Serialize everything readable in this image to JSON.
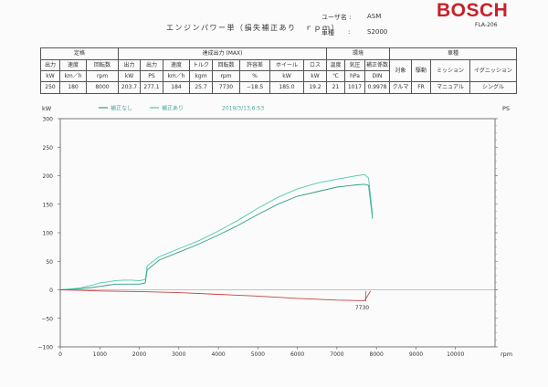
{
  "header": {
    "brand": "BOSCH",
    "model_code": "FLA-206",
    "title": "エンジンパワー単（損失補正あり　ｒｐｍ）",
    "user_label": "ユーザ名 :",
    "user_value": "ASM",
    "car_label": "車種",
    "car_sep": ":",
    "car_value": "S2000"
  },
  "table": {
    "groups": [
      "定格",
      "達成出力 (MAX)",
      "環境",
      "車種"
    ],
    "headers": [
      [
        "出力",
        "kW"
      ],
      [
        "速度",
        "km／h"
      ],
      [
        "回転数",
        "rpm"
      ],
      [
        "出力",
        "kW"
      ],
      [
        "出力",
        "PS"
      ],
      [
        "速度",
        "km／h"
      ],
      [
        "トルク",
        "kgm"
      ],
      [
        "回転数",
        "rpm"
      ],
      [
        "許容差",
        "%"
      ],
      [
        "ホイール",
        "kW"
      ],
      [
        "ロス",
        "kW"
      ],
      [
        "温度",
        "℃"
      ],
      [
        "気圧",
        "hPa"
      ],
      [
        "補正係数",
        "DIN"
      ],
      [
        "対象",
        ""
      ],
      [
        "駆動",
        ""
      ],
      [
        "ミッション",
        ""
      ],
      [
        "イグニッション",
        ""
      ]
    ],
    "values": [
      "250",
      "180",
      "8000",
      "203.7",
      "277.1",
      "184",
      "25.7",
      "7730",
      "−18.5",
      "185.0",
      "19.2",
      "21",
      "1017",
      "0.9978",
      "クルマ",
      "FR",
      "マニュアル",
      "シングル"
    ]
  },
  "chart_data": {
    "type": "line",
    "legend": [
      "補正なし",
      "補正あり"
    ],
    "date": "2019/3/13,6:53",
    "xlabel": "rpm",
    "ylabel_left": "kW",
    "ylabel_right": "PS",
    "xlim": [
      0,
      11000
    ],
    "ylim": [
      -100,
      300
    ],
    "xticks": [
      0,
      1000,
      2000,
      3000,
      4000,
      5000,
      6000,
      7000,
      8000,
      9000,
      10000
    ],
    "yticks": [
      -100,
      -50,
      0,
      50,
      100,
      150,
      200,
      250,
      300
    ],
    "annotation": "7730",
    "colors": {
      "corrected": "#4ec9b0",
      "uncorrected": "#2f9f84",
      "loss": "#c94040"
    },
    "series": [
      {
        "name": "補正なし",
        "x": [
          0,
          500,
          800,
          1000,
          1200,
          1400,
          1600,
          1800,
          2000,
          2150,
          2200,
          2500,
          3000,
          3500,
          4000,
          4500,
          5000,
          5500,
          6000,
          6500,
          7000,
          7500,
          7700,
          7800,
          7900
        ],
        "y": [
          0,
          2,
          4,
          6,
          8,
          10,
          10,
          10,
          10,
          12,
          35,
          52,
          66,
          80,
          96,
          113,
          132,
          150,
          164,
          172,
          180,
          184,
          185,
          183,
          125
        ]
      },
      {
        "name": "補正あり",
        "x": [
          0,
          500,
          800,
          1000,
          1200,
          1400,
          1600,
          1800,
          2000,
          2150,
          2200,
          2500,
          3000,
          3500,
          4000,
          4500,
          5000,
          5500,
          6000,
          6500,
          7000,
          7500,
          7700,
          7800,
          7900
        ],
        "y": [
          0,
          3,
          8,
          12,
          14,
          16,
          17,
          17,
          16,
          18,
          42,
          58,
          72,
          86,
          103,
          122,
          143,
          162,
          177,
          187,
          194,
          200,
          202,
          196,
          132
        ]
      },
      {
        "name": "ロス",
        "x": [
          0,
          500,
          1000,
          2000,
          3000,
          4000,
          5000,
          6000,
          7000,
          7700,
          7850
        ],
        "y": [
          0,
          -1,
          -2,
          -3,
          -5,
          -8,
          -11,
          -15,
          -18,
          -19,
          -2
        ]
      }
    ]
  }
}
